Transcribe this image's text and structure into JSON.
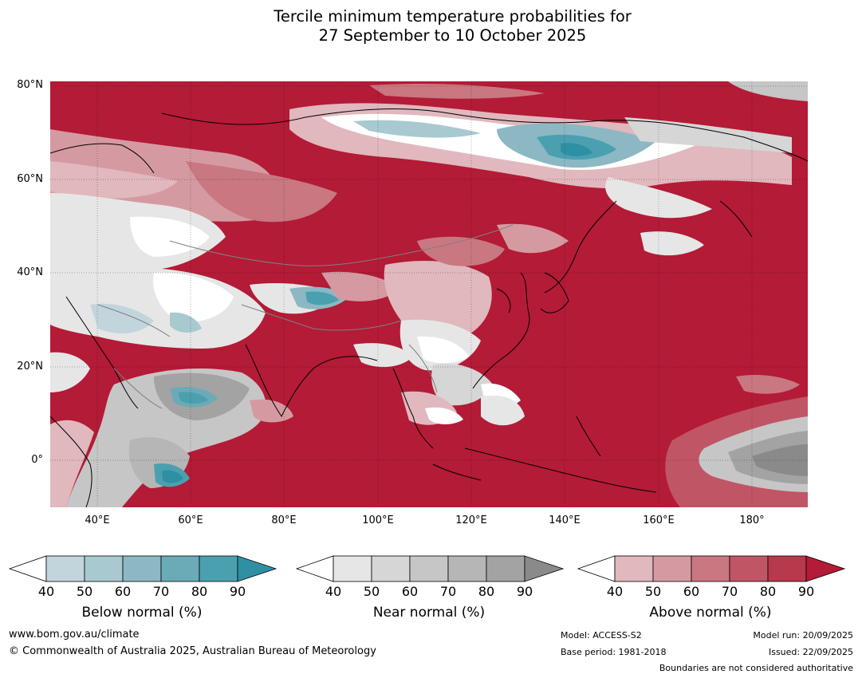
{
  "title": {
    "line1": "Tercile minimum temperature probabilities for",
    "line2": "27 September to 10 October 2025"
  },
  "map": {
    "lon_range": [
      30,
      192
    ],
    "lat_range": [
      -10,
      81
    ],
    "lat_ticks": [
      {
        "value": 80,
        "label": "80°N"
      },
      {
        "value": 60,
        "label": "60°N"
      },
      {
        "value": 40,
        "label": "40°N"
      },
      {
        "value": 20,
        "label": "20°N"
      },
      {
        "value": 0,
        "label": "0°"
      }
    ],
    "lon_ticks": [
      {
        "value": 40,
        "label": "40°E"
      },
      {
        "value": 60,
        "label": "60°E"
      },
      {
        "value": 80,
        "label": "80°E"
      },
      {
        "value": 100,
        "label": "100°E"
      },
      {
        "value": 120,
        "label": "120°E"
      },
      {
        "value": 140,
        "label": "140°E"
      },
      {
        "value": 160,
        "label": "160°E"
      },
      {
        "value": 180,
        "label": "180°"
      }
    ],
    "colors": {
      "above_max": "#b31b36",
      "below_max": "#2f8fa3",
      "near_max": "#8a8a8a",
      "neutral": "#ffffff",
      "coast": "#000000",
      "borders": "#808080"
    }
  },
  "colorbars": [
    {
      "id": "below",
      "title": "Below normal (%)",
      "ticks": [
        "40",
        "50",
        "60",
        "70",
        "80",
        "90"
      ],
      "colors": [
        "#c3d5dc",
        "#a8c9d0",
        "#8bb8c3",
        "#6aabb7",
        "#4ba0b0",
        "#2f8fa3"
      ]
    },
    {
      "id": "near",
      "title": "Near normal (%)",
      "ticks": [
        "40",
        "50",
        "60",
        "70",
        "80",
        "90"
      ],
      "colors": [
        "#e6e6e6",
        "#d6d6d6",
        "#c6c6c6",
        "#b6b6b6",
        "#a3a3a3",
        "#8a8a8a"
      ]
    },
    {
      "id": "above",
      "title": "Above normal (%)",
      "ticks": [
        "40",
        "50",
        "60",
        "70",
        "80",
        "90"
      ],
      "colors": [
        "#e0b8bd",
        "#d59aa1",
        "#c97780",
        "#c05566",
        "#b8384c",
        "#b31b36"
      ]
    }
  ],
  "footer": {
    "website": "www.bom.gov.au/climate",
    "copyright": "© Commonwealth of Australia 2025, Australian Bureau of Meteorology",
    "model": "Model: ACCESS-S2",
    "base_period": "Base period: 1981-2018",
    "model_run": "Model run: 20/09/2025",
    "issued": "Issued: 22/09/2025",
    "disclaimer": "Boundaries are not considered authoritative"
  }
}
